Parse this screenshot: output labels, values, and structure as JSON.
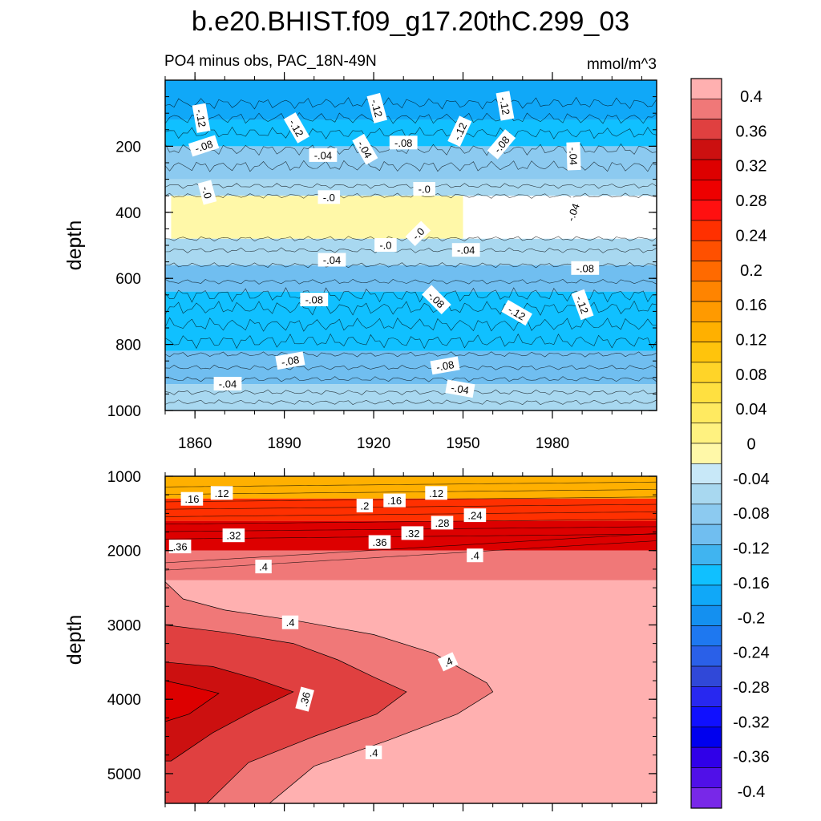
{
  "title": "b.e20.BHIST.f09_g17.20thC.299_03",
  "top_panel": {
    "left_label": "PO4 minus obs, PAC_18N-49N",
    "right_label": "mmol/m^3"
  },
  "colorbar": {
    "labels": [
      "0.4",
      "0.36",
      "0.32",
      "0.28",
      "0.24",
      "0.2",
      "0.16",
      "0.12",
      "0.08",
      "0.04",
      "0",
      "-0.04",
      "-0.08",
      "-0.12",
      "-0.16",
      "-0.2",
      "-0.24",
      "-0.28",
      "-0.32",
      "-0.36",
      "-0.4"
    ],
    "colors": [
      "#ffb0b0",
      "#f07878",
      "#e04040",
      "#cc1010",
      "#dd0000",
      "#ee0000",
      "#ff1010",
      "#ff3000",
      "#ff5000",
      "#ff6a00",
      "#ff8400",
      "#ff9a00",
      "#ffb000",
      "#ffc40c",
      "#ffd428",
      "#ffe040",
      "#ffea60",
      "#fff280",
      "#fff8a8",
      "#c8e8f8",
      "#a8d8f0",
      "#8ccaf0",
      "#70bef0",
      "#40b4f0",
      "#10c0ff",
      "#10a8f8",
      "#1490f0",
      "#1e78f0",
      "#2a60e8",
      "#3048d8",
      "#2828f0",
      "#1010ff",
      "#0000ee",
      "#3000e8",
      "#5010e8",
      "#7828e8"
    ]
  },
  "chart_data": [
    {
      "type": "contour",
      "name": "upper panel (0-1000 m)",
      "xlabel": "",
      "ylabel": "depth",
      "xlim": [
        1850,
        2015
      ],
      "ylim": [
        1000,
        0
      ],
      "xticks": [
        1860,
        1890,
        1920,
        1950,
        1980
      ],
      "yticks": [
        200,
        400,
        600,
        800,
        1000
      ],
      "fill_bands": [
        {
          "depth_range": [
            0,
            120
          ],
          "value": -0.14
        },
        {
          "depth_range": [
            120,
            200
          ],
          "value": -0.12
        },
        {
          "depth_range": [
            200,
            300
          ],
          "value": -0.06
        },
        {
          "depth_range": [
            300,
            350
          ],
          "value": -0.02
        },
        {
          "depth_range": [
            350,
            480
          ],
          "value": 0.02,
          "x_range": [
            1852,
            1950
          ]
        },
        {
          "depth_range": [
            480,
            560
          ],
          "value": -0.03
        },
        {
          "depth_range": [
            560,
            640
          ],
          "value": -0.07
        },
        {
          "depth_range": [
            640,
            820
          ],
          "value": -0.11
        },
        {
          "depth_range": [
            820,
            920
          ],
          "value": -0.08
        },
        {
          "depth_range": [
            920,
            1000
          ],
          "value": -0.03
        }
      ],
      "contour_labels": [
        {
          "text": "-.12",
          "x": 1862,
          "depth": 115,
          "rotation": 80
        },
        {
          "text": "-.12",
          "x": 1894,
          "depth": 145,
          "rotation": 60
        },
        {
          "text": "-.12",
          "x": 1921,
          "depth": 85,
          "rotation": 75
        },
        {
          "text": "-.12",
          "x": 1949,
          "depth": 155,
          "rotation": -65
        },
        {
          "text": "-.12",
          "x": 1964,
          "depth": 78,
          "rotation": 80
        },
        {
          "text": "-.08",
          "x": 1863,
          "depth": 200,
          "rotation": -18
        },
        {
          "text": "-.08",
          "x": 1930,
          "depth": 190,
          "rotation": 0
        },
        {
          "text": "-.08",
          "x": 1963,
          "depth": 195,
          "rotation": -50
        },
        {
          "text": "-.04",
          "x": 1903,
          "depth": 228,
          "rotation": 0
        },
        {
          "text": "-.04",
          "x": 1917,
          "depth": 210,
          "rotation": 60
        },
        {
          "text": "-.04",
          "x": 1987,
          "depth": 230,
          "rotation": 88
        },
        {
          "text": "-.04",
          "x": 1987,
          "depth": 400,
          "rotation": -70
        },
        {
          "text": "-.0",
          "x": 1864,
          "depth": 340,
          "rotation": 75
        },
        {
          "text": "-.0",
          "x": 1905,
          "depth": 355,
          "rotation": 0
        },
        {
          "text": "-.0",
          "x": 1937,
          "depth": 330,
          "rotation": 0
        },
        {
          "text": "-.0",
          "x": 1935,
          "depth": 465,
          "rotation": -45
        },
        {
          "text": "-.0",
          "x": 1924,
          "depth": 500,
          "rotation": 0
        },
        {
          "text": "-.04",
          "x": 1906,
          "depth": 545,
          "rotation": 0
        },
        {
          "text": "-.04",
          "x": 1951,
          "depth": 515,
          "rotation": 0
        },
        {
          "text": "-.08",
          "x": 1991,
          "depth": 570,
          "rotation": 0
        },
        {
          "text": "-.08",
          "x": 1900,
          "depth": 665,
          "rotation": 0
        },
        {
          "text": "-.08",
          "x": 1941,
          "depth": 665,
          "rotation": 45
        },
        {
          "text": "-.12",
          "x": 1968,
          "depth": 705,
          "rotation": 30
        },
        {
          "text": "-.12",
          "x": 1990,
          "depth": 680,
          "rotation": 70
        },
        {
          "text": "-.08",
          "x": 1892,
          "depth": 850,
          "rotation": -10
        },
        {
          "text": "-.08",
          "x": 1944,
          "depth": 865,
          "rotation": -10
        },
        {
          "text": "-.04",
          "x": 1871,
          "depth": 920,
          "rotation": 0
        },
        {
          "text": "-.04",
          "x": 1949,
          "depth": 935,
          "rotation": 10
        }
      ]
    },
    {
      "type": "contour",
      "name": "lower panel (1000-5400 m)",
      "xlabel": "",
      "ylabel": "depth",
      "xlim": [
        1850,
        2015
      ],
      "ylim": [
        5400,
        1000
      ],
      "xticks": [
        1860,
        1890,
        1920,
        1950,
        1980
      ],
      "yticks": [
        1000,
        2000,
        3000,
        4000,
        5000
      ],
      "fill_bands": [
        {
          "depth_range": [
            1000,
            1300
          ],
          "value": 0.14
        },
        {
          "depth_range": [
            1300,
            1600
          ],
          "value": 0.26
        },
        {
          "depth_range": [
            1600,
            2000
          ],
          "value": 0.34
        },
        {
          "depth_range": [
            2000,
            2400
          ],
          "value": 0.39
        },
        {
          "depth_range": [
            2400,
            5400
          ],
          "value": 0.41
        }
      ],
      "contour_labels": [
        {
          "text": ".16",
          "x": 1859,
          "depth": 1310,
          "rotation": 0
        },
        {
          "text": ".12",
          "x": 1869,
          "depth": 1230,
          "rotation": 0
        },
        {
          "text": ".2",
          "x": 1917,
          "depth": 1400,
          "rotation": 0
        },
        {
          "text": ".16",
          "x": 1927,
          "depth": 1330,
          "rotation": 0
        },
        {
          "text": ".12",
          "x": 1941,
          "depth": 1230,
          "rotation": 0
        },
        {
          "text": ".28",
          "x": 1943,
          "depth": 1630,
          "rotation": 0
        },
        {
          "text": ".24",
          "x": 1954,
          "depth": 1530,
          "rotation": 0
        },
        {
          "text": ".32",
          "x": 1873,
          "depth": 1800,
          "rotation": 0
        },
        {
          "text": ".32",
          "x": 1933,
          "depth": 1770,
          "rotation": 0
        },
        {
          "text": ".36",
          "x": 1855,
          "depth": 1950,
          "rotation": 0
        },
        {
          "text": ".36",
          "x": 1922,
          "depth": 1890,
          "rotation": 0
        },
        {
          "text": ".4",
          "x": 1954,
          "depth": 2070,
          "rotation": 0
        },
        {
          "text": ".4",
          "x": 1883,
          "depth": 2220,
          "rotation": 0
        },
        {
          "text": ".4",
          "x": 1892,
          "depth": 2970,
          "rotation": 0
        },
        {
          "text": ".4",
          "x": 1945,
          "depth": 3500,
          "rotation": -25
        },
        {
          "text": ".36",
          "x": 1897,
          "depth": 4000,
          "rotation": -75
        },
        {
          "text": ".4",
          "x": 1920,
          "depth": 4720,
          "rotation": 0
        }
      ]
    }
  ]
}
